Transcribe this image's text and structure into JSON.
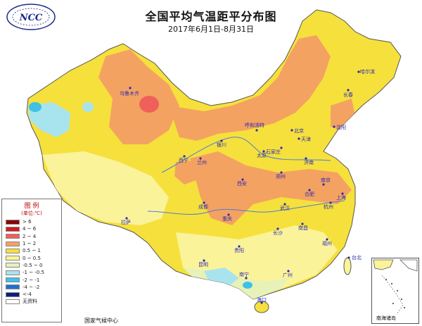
{
  "title": "全国平均气温距平分布图",
  "subtitle": "2017年6月1日-8月31日",
  "logo_text": "NCC",
  "legend": {
    "title": "图 例",
    "unit": "(单位:℃)",
    "items": [
      {
        "label": "> 6",
        "color": "#8b0000"
      },
      {
        "label": "4 ~ 6",
        "color": "#d7191c"
      },
      {
        "label": "2 ~ 4",
        "color": "#f0605a"
      },
      {
        "label": "1 ~ 2",
        "color": "#f4a261"
      },
      {
        "label": "0.5 ~ 1",
        "color": "#f6e03c"
      },
      {
        "label": "0 ~ 0.5",
        "color": "#fbf39a"
      },
      {
        "label": "-0.5 ~ 0",
        "color": "#e6f2b8"
      },
      {
        "label": "-1 ~ -0.5",
        "color": "#a8e4ee"
      },
      {
        "label": "-2 ~ -1",
        "color": "#3fc1e6"
      },
      {
        "label": "-4 ~ -2",
        "color": "#1f6fd1"
      },
      {
        "label": "<-4",
        "color": "#0a1e7a"
      },
      {
        "label": "无资料",
        "color": "#ffffff"
      }
    ]
  },
  "credit": "国家气候中心",
  "inset_label": "南海诸岛",
  "cities": [
    "乌鲁木齐",
    "拉萨",
    "西宁",
    "兰州",
    "银川",
    "呼和浩特",
    "北京",
    "天津",
    "石家庄",
    "太原",
    "济南",
    "郑州",
    "西安",
    "成都",
    "重庆",
    "武汉",
    "合肥",
    "南京",
    "上海",
    "杭州",
    "长沙",
    "南昌",
    "福州",
    "贵阳",
    "昆明",
    "南宁",
    "广州",
    "海口",
    "台北",
    "沈阳",
    "长春",
    "哈尔滨"
  ]
}
